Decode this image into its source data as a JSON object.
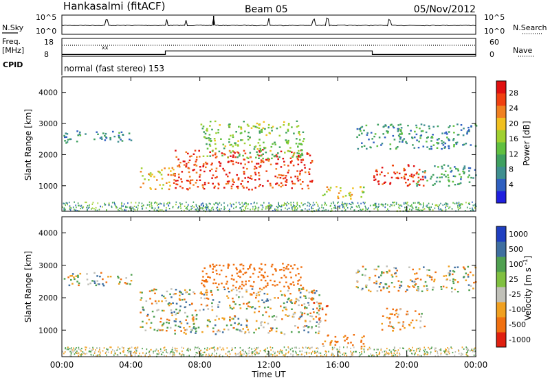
{
  "header": {
    "title": "Hankasalmi (fitACF)",
    "beam": "Beam 05",
    "date": "05/Nov/2012"
  },
  "nsky": {
    "label": "N.Sky",
    "right_label": "N.Search",
    "ticks_left": [
      "10^5",
      "10^0"
    ],
    "ticks_right": [
      "10^5",
      "10^0"
    ]
  },
  "freq": {
    "label_top": "Freq.",
    "label_units": "[MHz]",
    "ticks_left": [
      "18",
      "8"
    ],
    "ticks_right": [
      "60",
      "0"
    ],
    "right_label": "Nave",
    "cpid_label": "CPID",
    "cpid_text": "normal (fast stereo) 153"
  },
  "power_panel": {
    "ylabel": "Slant Range [km]",
    "yticks": [
      "4000",
      "3000",
      "2000",
      "1000"
    ],
    "colorbar_label": "Power [dB]",
    "colorbar_ticks": [
      "28",
      "24",
      "20",
      "16",
      "12",
      "8",
      "4"
    ],
    "colors": [
      "#1f1fdf",
      "#2f60c0",
      "#3f8f8f",
      "#3fa060",
      "#60c040",
      "#a0d030",
      "#f0c020",
      "#f08020",
      "#f04010",
      "#e01010"
    ]
  },
  "velocity_panel": {
    "ylabel": "Slant Range [km]",
    "yticks": [
      "4000",
      "3000",
      "2000",
      "1000"
    ],
    "colorbar_label": "Velocity [m s^-1]",
    "colorbar_ticks": [
      "1000",
      "500",
      "100",
      "25",
      "-25",
      "-100",
      "-500",
      "-1000"
    ],
    "colors": [
      "#1f3fc0",
      "#3f6fa0",
      "#4fa050",
      "#80c040",
      "#c0c0b8",
      "#f0a020",
      "#f07010",
      "#e02010"
    ]
  },
  "xaxis": {
    "label": "Time UT",
    "ticks": [
      "00:00",
      "04:00",
      "08:00",
      "12:00",
      "16:00",
      "20:00",
      "00:00"
    ]
  },
  "chart_data": [
    {
      "type": "line",
      "series": [
        {
          "name": "N.Sky"
        },
        {
          "name": "N.Search"
        }
      ],
      "x_range_hours": [
        0,
        24
      ],
      "y_range": [
        "10^0",
        "10^5"
      ],
      "note_spikes_hours": [
        2.6,
        6.1,
        7.2,
        8.8,
        12.0,
        14.6,
        15.4,
        19.0
      ]
    },
    {
      "type": "line",
      "series": [
        {
          "name": "Freq."
        },
        {
          "name": "Nave"
        }
      ],
      "x": [
        0,
        6.0,
        6.0,
        18.0,
        18.0,
        24.0
      ],
      "freq_step_mhz": [
        9,
        9,
        11,
        11,
        9,
        9
      ],
      "nave_dotted": 33
    },
    {
      "type": "heatmap",
      "xlabel": "Time UT",
      "ylabel": "Slant Range [km]",
      "xlim_hours": [
        0,
        24
      ],
      "ylim_km": [
        180,
        4500
      ],
      "colorbar": "Power [dB]",
      "zlim": [
        0,
        30
      ],
      "regions": [
        {
          "t0": 0.0,
          "t1": 4.0,
          "r0": 2400,
          "r1": 2800,
          "value": 8
        },
        {
          "t0": 4.5,
          "t1": 6.5,
          "r0": 900,
          "r1": 1600,
          "value": 20
        },
        {
          "t0": 6.5,
          "t1": 14.5,
          "r0": 900,
          "r1": 2200,
          "value": 26
        },
        {
          "t0": 8.0,
          "t1": 14.0,
          "r0": 1900,
          "r1": 3100,
          "value": 14
        },
        {
          "t0": 15.0,
          "t1": 17.5,
          "r0": 600,
          "r1": 1000,
          "value": 18
        },
        {
          "t0": 18.0,
          "t1": 21.0,
          "r0": 1000,
          "r1": 1700,
          "value": 27
        },
        {
          "t0": 17.0,
          "t1": 24.0,
          "r0": 2200,
          "r1": 3000,
          "value": 9
        },
        {
          "t0": 20.5,
          "t1": 24.0,
          "r0": 1000,
          "r1": 1700,
          "value": 10
        }
      ]
    },
    {
      "type": "heatmap",
      "xlabel": "Time UT",
      "ylabel": "Slant Range [km]",
      "xlim_hours": [
        0,
        24
      ],
      "ylim_km": [
        180,
        4500
      ],
      "colorbar": "Velocity [m s^-1]",
      "zlim": [
        -1000,
        1000
      ],
      "regions": [
        {
          "t0": 0.0,
          "t1": 4.0,
          "r0": 2400,
          "r1": 2800,
          "value": 0
        },
        {
          "t0": 4.5,
          "t1": 15.0,
          "r0": 900,
          "r1": 2300,
          "value": 0
        },
        {
          "t0": 8.0,
          "t1": 14.0,
          "r0": 2300,
          "r1": 3100,
          "value": -300
        },
        {
          "t0": 14.5,
          "t1": 15.5,
          "r0": 1300,
          "r1": 2000,
          "value": -400
        },
        {
          "t0": 15.0,
          "t1": 17.5,
          "r0": 500,
          "r1": 900,
          "value": -150
        },
        {
          "t0": 18.5,
          "t1": 21.0,
          "r0": 1000,
          "r1": 1700,
          "value": -120
        },
        {
          "t0": 17.0,
          "t1": 24.0,
          "r0": 2200,
          "r1": 3000,
          "value": 0
        }
      ]
    }
  ]
}
